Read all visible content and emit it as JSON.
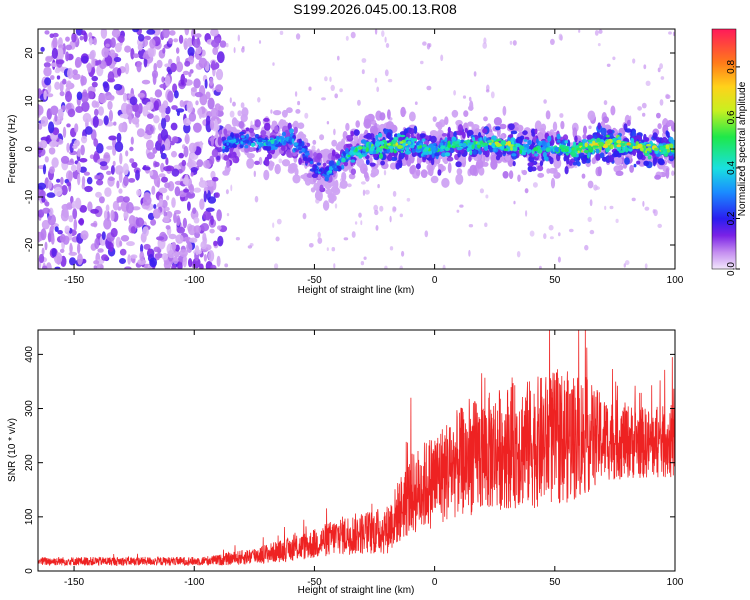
{
  "title": "S199.2026.045.00.13.R08",
  "chart_data": [
    {
      "type": "heatmap",
      "xlabel": "Height of straight line (km)",
      "ylabel": "Frequency (Hz)",
      "xlim": [
        -165,
        100
      ],
      "ylim": [
        -25,
        25
      ],
      "xticks": [
        -150,
        -100,
        -50,
        0,
        50,
        100
      ],
      "yticks": [
        -20,
        -10,
        0,
        10,
        20
      ],
      "colorbar": {
        "label": "Normalized spectral amplitude",
        "range": [
          0.0,
          0.95
        ],
        "ticks": [
          0.0,
          0.2,
          0.4,
          0.6,
          0.8
        ]
      },
      "signal_track": {
        "x": [
          -88,
          -80,
          -70,
          -60,
          -55,
          -50,
          -45,
          -40,
          -35,
          -30,
          -20,
          -10,
          0,
          10,
          20,
          30,
          40,
          50,
          60,
          70,
          80,
          90,
          100
        ],
        "frequency": [
          1,
          2,
          1,
          2,
          0,
          -4,
          -5,
          -3,
          -1,
          0,
          1,
          1,
          0,
          1,
          1,
          1,
          0,
          0,
          0,
          1,
          1,
          0,
          0
        ],
        "amplitude": [
          0.3,
          0.3,
          0.35,
          0.35,
          0.3,
          0.25,
          0.3,
          0.35,
          0.4,
          0.45,
          0.55,
          0.5,
          0.4,
          0.4,
          0.5,
          0.55,
          0.45,
          0.4,
          0.55,
          0.6,
          0.6,
          0.55,
          0.5
        ]
      },
      "noise_region_x": [
        -165,
        -88
      ]
    },
    {
      "type": "line",
      "xlabel": "Height of straight line (km)",
      "ylabel": "SNR (10 * v/v)",
      "xlim": [
        -165,
        100
      ],
      "ylim": [
        0,
        445
      ],
      "xticks": [
        -150,
        -100,
        -50,
        0,
        50,
        100
      ],
      "yticks": [
        0,
        100,
        200,
        300,
        400
      ],
      "color": "#ee2222",
      "envelope": {
        "x": [
          -165,
          -120,
          -100,
          -90,
          -80,
          -70,
          -60,
          -50,
          -40,
          -30,
          -20,
          -15,
          -10,
          0,
          10,
          20,
          30,
          40,
          50,
          60,
          70,
          80,
          90,
          100
        ],
        "mean": [
          18,
          18,
          18,
          20,
          25,
          32,
          40,
          50,
          65,
          70,
          75,
          110,
          140,
          170,
          200,
          215,
          230,
          235,
          245,
          250,
          245,
          240,
          235,
          240
        ],
        "spread": [
          8,
          8,
          8,
          10,
          14,
          18,
          22,
          28,
          35,
          40,
          45,
          60,
          75,
          90,
          100,
          110,
          115,
          120,
          125,
          120,
          80,
          70,
          65,
          70
        ]
      }
    }
  ]
}
